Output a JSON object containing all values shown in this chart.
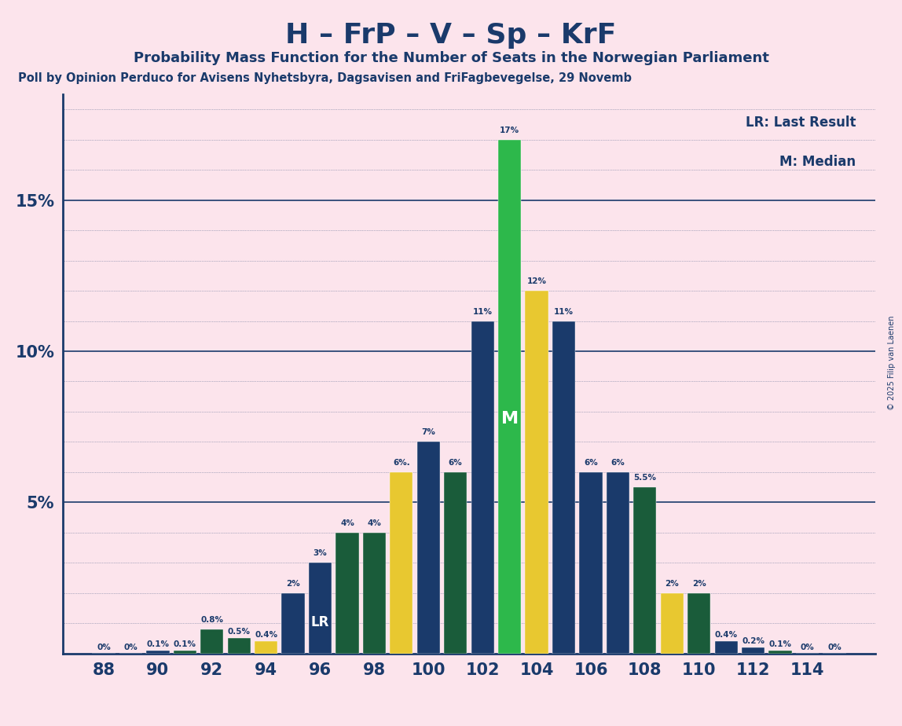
{
  "title": "H – FrP – V – Sp – KrF",
  "subtitle": "Probability Mass Function for the Number of Seats in the Norwegian Parliament",
  "source": "Poll by Opinion Perduco for Avisens Nyhetsbyra, Dagsavisen and FriFagbevegelse, 29 Novemb",
  "copyright": "© 2025 Filip van Laenen",
  "legend1": "LR: Last Result",
  "legend2": "M: Median",
  "background_color": "#fce4ec",
  "bar_color_blue": "#1a3a6b",
  "bar_color_darkgreen": "#1a5c3a",
  "bar_color_brightgreen": "#2db84b",
  "bar_color_yellow": "#e8c830",
  "text_color": "#1a3a6b",
  "seats_data": [
    {
      "seat": 88,
      "value": 0.0,
      "color": "blue",
      "label": "0%"
    },
    {
      "seat": 89,
      "value": 0.0,
      "color": "blue",
      "label": "0%"
    },
    {
      "seat": 90,
      "value": 0.1,
      "color": "blue",
      "label": "0.1%"
    },
    {
      "seat": 91,
      "value": 0.1,
      "color": "darkgreen",
      "label": "0.1%"
    },
    {
      "seat": 92,
      "value": 0.8,
      "color": "darkgreen",
      "label": "0.8%"
    },
    {
      "seat": 93,
      "value": 0.5,
      "color": "darkgreen",
      "label": "0.5%"
    },
    {
      "seat": 94,
      "value": 0.4,
      "color": "yellow",
      "label": "0.4%"
    },
    {
      "seat": 95,
      "value": 2.0,
      "color": "blue",
      "label": "2%"
    },
    {
      "seat": 96,
      "value": 3.0,
      "color": "blue",
      "label": "3%"
    },
    {
      "seat": 97,
      "value": 4.0,
      "color": "darkgreen",
      "label": "4%"
    },
    {
      "seat": 98,
      "value": 4.0,
      "color": "darkgreen",
      "label": "4%"
    },
    {
      "seat": 99,
      "value": 6.0,
      "color": "yellow",
      "label": "6%."
    },
    {
      "seat": 100,
      "value": 7.0,
      "color": "blue",
      "label": "7%"
    },
    {
      "seat": 101,
      "value": 6.0,
      "color": "darkgreen",
      "label": "6%"
    },
    {
      "seat": 102,
      "value": 11.0,
      "color": "blue",
      "label": "11%"
    },
    {
      "seat": 103,
      "value": 17.0,
      "color": "brightgreen",
      "label": "17%"
    },
    {
      "seat": 104,
      "value": 12.0,
      "color": "yellow",
      "label": "12%"
    },
    {
      "seat": 105,
      "value": 11.0,
      "color": "blue",
      "label": "11%"
    },
    {
      "seat": 106,
      "value": 6.0,
      "color": "blue",
      "label": "6%"
    },
    {
      "seat": 107,
      "value": 6.0,
      "color": "blue",
      "label": "6%"
    },
    {
      "seat": 108,
      "value": 5.5,
      "color": "darkgreen",
      "label": "5.5%"
    },
    {
      "seat": 109,
      "value": 2.0,
      "color": "yellow",
      "label": "2%"
    },
    {
      "seat": 110,
      "value": 2.0,
      "color": "darkgreen",
      "label": "2%"
    },
    {
      "seat": 111,
      "value": 0.4,
      "color": "blue",
      "label": "0.4%"
    },
    {
      "seat": 112,
      "value": 0.2,
      "color": "blue",
      "label": "0.2%"
    },
    {
      "seat": 113,
      "value": 0.1,
      "color": "darkgreen",
      "label": "0.1%"
    },
    {
      "seat": 114,
      "value": 0.0,
      "color": "blue",
      "label": "0%"
    },
    {
      "seat": 115,
      "value": 0.0,
      "color": "blue",
      "label": "0%"
    }
  ],
  "lr_seat": 96,
  "median_seat": 103,
  "xlim": [
    86.5,
    116.5
  ],
  "ylim": [
    0,
    18.5
  ]
}
